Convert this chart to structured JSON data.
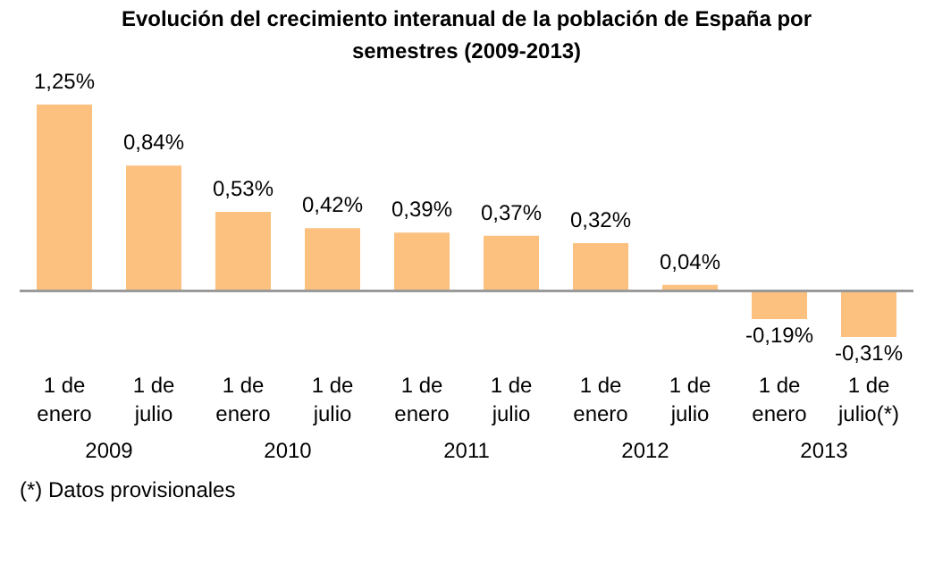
{
  "chart_data": {
    "type": "bar",
    "title": "Evolución del crecimiento interanual de la población de España por semestres (2009-2013)",
    "categories": [
      "1 de enero",
      "1 de julio",
      "1 de enero",
      "1 de julio",
      "1 de enero",
      "1 de julio",
      "1 de enero",
      "1 de julio",
      "1 de enero",
      "1 de julio(*)"
    ],
    "values": [
      1.25,
      0.84,
      0.53,
      0.42,
      0.39,
      0.37,
      0.32,
      0.04,
      -0.19,
      -0.31
    ],
    "value_labels": [
      "1,25%",
      "0,84%",
      "0,53%",
      "0,42%",
      "0,39%",
      "0,37%",
      "0,32%",
      "0,04%",
      "-0,19%",
      "-0,31%"
    ],
    "color": "#fcc07f",
    "annotations": [
      "2009",
      "2010",
      "2011",
      "2012",
      "2013",
      "(*) Datos provisionales"
    ]
  }
}
